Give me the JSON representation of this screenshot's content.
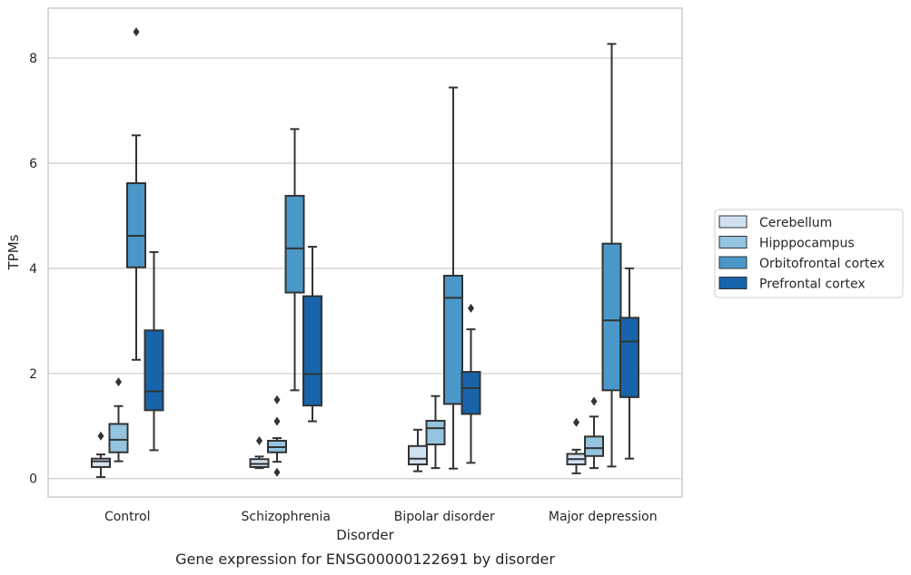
{
  "caption": "Gene expression for ENSG00000122691 by disorder",
  "chart_data": {
    "type": "box",
    "xlabel": "Disorder",
    "ylabel": "TPMs",
    "ylim": [
      -0.35,
      8.95
    ],
    "yticks": [
      0,
      2,
      4,
      6,
      8
    ],
    "grid": "horizontal",
    "legend_position": "right",
    "categories": [
      "Control",
      "Schizophrenia",
      "Bipolar disorder",
      "Major depression"
    ],
    "series": [
      {
        "name": "Cerebellum",
        "color": "#d0e1f2",
        "boxes": [
          {
            "whisker_low": 0.03,
            "q1": 0.22,
            "median": 0.33,
            "q3": 0.38,
            "whisker_high": 0.46,
            "outliers": [
              0.81
            ]
          },
          {
            "whisker_low": 0.2,
            "q1": 0.22,
            "median": 0.28,
            "q3": 0.37,
            "whisker_high": 0.42,
            "outliers": [
              0.72
            ]
          },
          {
            "whisker_low": 0.14,
            "q1": 0.27,
            "median": 0.38,
            "q3": 0.62,
            "whisker_high": 0.93,
            "outliers": []
          },
          {
            "whisker_low": 0.1,
            "q1": 0.27,
            "median": 0.37,
            "q3": 0.47,
            "whisker_high": 0.55,
            "outliers": [
              1.07
            ]
          }
        ]
      },
      {
        "name": "Hipppocampus",
        "color": "#94c4df",
        "boxes": [
          {
            "whisker_low": 0.33,
            "q1": 0.5,
            "median": 0.74,
            "q3": 1.04,
            "whisker_high": 1.38,
            "outliers": [
              1.84
            ]
          },
          {
            "whisker_low": 0.32,
            "q1": 0.5,
            "median": 0.6,
            "q3": 0.72,
            "whisker_high": 0.77,
            "outliers": [
              1.5,
              1.09,
              0.12
            ]
          },
          {
            "whisker_low": 0.2,
            "q1": 0.65,
            "median": 0.96,
            "q3": 1.1,
            "whisker_high": 1.57,
            "outliers": []
          },
          {
            "whisker_low": 0.2,
            "q1": 0.43,
            "median": 0.58,
            "q3": 0.8,
            "whisker_high": 1.18,
            "outliers": [
              1.47
            ]
          }
        ]
      },
      {
        "name": "Orbitofrontal cortex",
        "color": "#4a98c9",
        "boxes": [
          {
            "whisker_low": 2.26,
            "q1": 4.02,
            "median": 4.62,
            "q3": 5.62,
            "whisker_high": 6.53,
            "outliers": [
              8.5
            ]
          },
          {
            "whisker_low": 1.68,
            "q1": 3.54,
            "median": 4.38,
            "q3": 5.38,
            "whisker_high": 6.65,
            "outliers": []
          },
          {
            "whisker_low": 0.19,
            "q1": 1.42,
            "median": 3.44,
            "q3": 3.86,
            "whisker_high": 7.44,
            "outliers": []
          },
          {
            "whisker_low": 0.23,
            "q1": 1.68,
            "median": 3.01,
            "q3": 4.47,
            "whisker_high": 8.27,
            "outliers": []
          }
        ]
      },
      {
        "name": "Prefrontal cortex",
        "color": "#1764ab",
        "boxes": [
          {
            "whisker_low": 0.54,
            "q1": 1.3,
            "median": 1.66,
            "q3": 2.82,
            "whisker_high": 4.31,
            "outliers": []
          },
          {
            "whisker_low": 1.09,
            "q1": 1.39,
            "median": 1.99,
            "q3": 3.47,
            "whisker_high": 4.41,
            "outliers": []
          },
          {
            "whisker_low": 0.3,
            "q1": 1.23,
            "median": 1.72,
            "q3": 2.03,
            "whisker_high": 2.84,
            "outliers": [
              3.24
            ]
          },
          {
            "whisker_low": 0.38,
            "q1": 1.55,
            "median": 2.61,
            "q3": 3.06,
            "whisker_high": 4.0,
            "outliers": []
          }
        ]
      }
    ]
  }
}
